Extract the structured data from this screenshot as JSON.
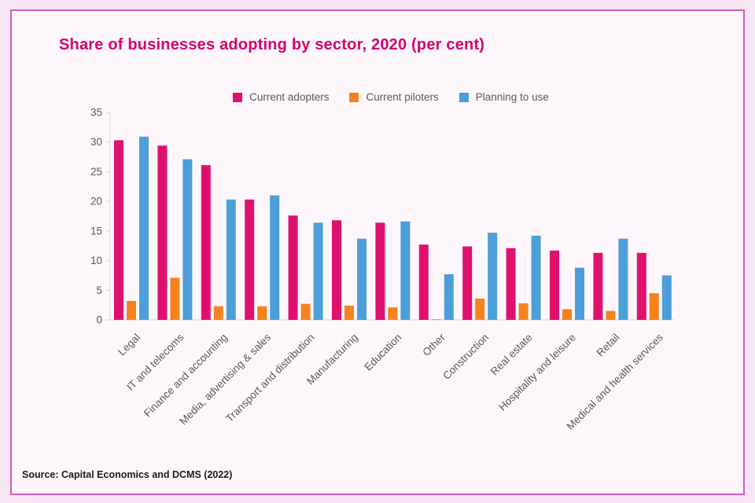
{
  "frame": {
    "border_color": "#d45cb8",
    "outer_background": "#f7e7f4",
    "inner_background": "#fdf7fb"
  },
  "title": {
    "text": "Share of businesses adopting by sector, 2020 (per cent)",
    "color": "#d4006e"
  },
  "source": {
    "text": "Source: Capital Economics and DCMS (2022)"
  },
  "chart_data": {
    "type": "bar",
    "title": "Share of businesses adopting by sector, 2020 (per cent)",
    "xlabel": "",
    "ylabel": "",
    "ylim": [
      0,
      35
    ],
    "yticks": [
      0,
      5,
      10,
      15,
      20,
      25,
      30,
      35
    ],
    "grid": false,
    "legend_position": "top",
    "axis_color": "#dcdcdc",
    "tick_label_color": "#595959",
    "categories": [
      "Legal",
      "IT and telecoms",
      "Finance and accounting",
      "Media, advertising & sales",
      "Transport and distribution",
      "Manufacturing",
      "Education",
      "Other",
      "Construction",
      "Real estate",
      "Hospitality and leisure",
      "Retail",
      "Medical and health services"
    ],
    "series": [
      {
        "name": "Current adopters",
        "color": "#e0116e",
        "values": [
          30.3,
          29.4,
          26.1,
          20.3,
          17.6,
          16.8,
          16.4,
          12.7,
          12.4,
          12.1,
          11.7,
          11.3,
          11.3
        ]
      },
      {
        "name": "Current piloters",
        "color": "#f6821e",
        "values": [
          3.2,
          7.1,
          2.3,
          2.3,
          2.7,
          2.4,
          2.1,
          0.1,
          3.6,
          2.8,
          1.8,
          1.5,
          4.5
        ]
      },
      {
        "name": "Planning to use",
        "color": "#4c9fd9",
        "values": [
          30.9,
          27.1,
          20.3,
          21.0,
          16.4,
          13.7,
          16.6,
          7.7,
          14.7,
          14.2,
          8.8,
          13.7,
          7.5
        ]
      }
    ]
  }
}
